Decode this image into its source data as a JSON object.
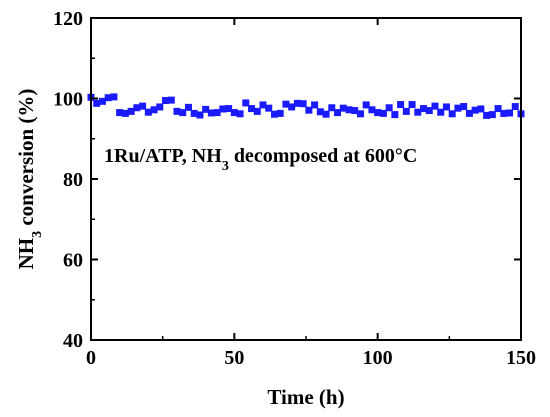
{
  "chart_data": {
    "type": "scatter",
    "xlabel": "Time (h)",
    "ylabel": {
      "pre": "NH",
      "sub": "3",
      "post": " conversion (%)"
    },
    "annotation": {
      "pre": "1Ru/ATP, NH",
      "sub": "3",
      "post": " decomposed at 600°C"
    },
    "xlim": [
      0,
      150
    ],
    "ylim": [
      40,
      120
    ],
    "xticks": [
      0,
      50,
      100,
      150
    ],
    "yticks": [
      40,
      60,
      80,
      100,
      120
    ],
    "grid": false,
    "marker_color": "#1a1aff",
    "series": [
      {
        "x": [
          0,
          2,
          4,
          6,
          8,
          10,
          12,
          14,
          16,
          18,
          20,
          22,
          24,
          26,
          28,
          30,
          32,
          34,
          36,
          38,
          40,
          42,
          44,
          46,
          48,
          50,
          52,
          54,
          56,
          58,
          60,
          62,
          64,
          66,
          68,
          70,
          72,
          74,
          76,
          78,
          80,
          82,
          84,
          86,
          88,
          90,
          92,
          94,
          96,
          98,
          100,
          102,
          104,
          106,
          108,
          110,
          112,
          114,
          116,
          118,
          120,
          122,
          124,
          126,
          128,
          130,
          132,
          134,
          136,
          138,
          140,
          142,
          144,
          146,
          148,
          150
        ],
        "y": [
          100.3,
          98.8,
          99.3,
          100.2,
          100.4,
          96.5,
          96.3,
          96.8,
          97.7,
          98.1,
          96.6,
          97.2,
          97.9,
          99.5,
          99.6,
          96.8,
          96.5,
          97.8,
          96.3,
          95.9,
          97.3,
          96.4,
          96.5,
          97.4,
          97.5,
          96.5,
          96.2,
          98.9,
          97.5,
          96.8,
          98.4,
          97.6,
          96.1,
          96.3,
          98.6,
          97.9,
          98.8,
          98.7,
          97.1,
          98.4,
          96.7,
          96.1,
          97.7,
          96.5,
          97.6,
          97.2,
          97.0,
          96.2,
          98.4,
          97.2,
          96.5,
          96.3,
          97.7,
          96.0,
          98.5,
          96.8,
          98.5,
          96.6,
          97.5,
          97.0,
          98.1,
          96.6,
          97.9,
          96.2,
          97.6,
          98.0,
          96.3,
          97.1,
          97.4,
          95.8,
          96.0,
          97.5,
          96.3,
          96.4,
          98.0,
          96.2
        ]
      }
    ]
  }
}
